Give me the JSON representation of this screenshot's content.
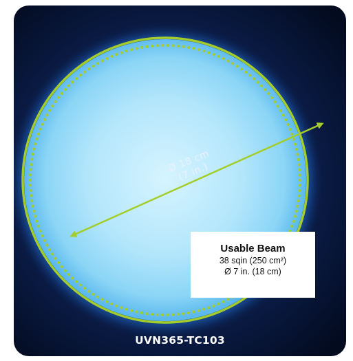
{
  "image": {
    "description_colors": {
      "background_dark": "#04102a",
      "beam_light": "#c7f0ff",
      "beam_mid": "#7fd0f6",
      "ring_accent": "#a4cd2c"
    }
  },
  "dimension_label": {
    "line1": "Ø 18 cm",
    "line2": "(7 in.)"
  },
  "info_box": {
    "title": "Usable Beam",
    "area": "38 sqin (250 cm²)",
    "diameter": "Ø 7 in. (18 cm)"
  },
  "model": "UVN365-TC103"
}
